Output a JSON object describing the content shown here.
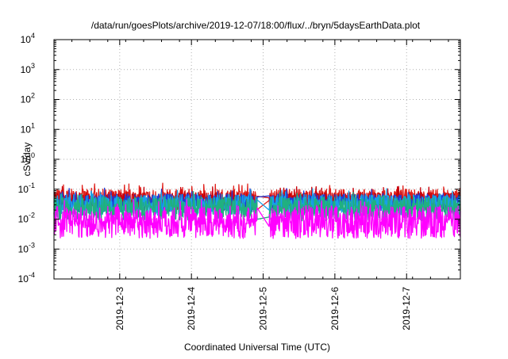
{
  "chart_data": {
    "type": "line",
    "title": "/data/run/goesPlots/archive/2019-12-07/18:00/flux/../bryn/5daysEarthData.plot",
    "xlabel": "Coordinated Universal Time (UTC)",
    "ylabel": "cSv/day",
    "yscale": "log",
    "ylim": [
      0.0001,
      10000
    ],
    "xlim": [
      "2019-12-02T02:00",
      "2019-12-07T18:00"
    ],
    "grid": true,
    "legend": "none",
    "y_ticks": [
      {
        "value": 0.0001,
        "base": "10",
        "exp": "-4"
      },
      {
        "value": 0.001,
        "base": "10",
        "exp": "-3"
      },
      {
        "value": 0.01,
        "base": "10",
        "exp": "-2"
      },
      {
        "value": 0.1,
        "base": "10",
        "exp": "-1"
      },
      {
        "value": 1,
        "base": "10",
        "exp": "0"
      },
      {
        "value": 10,
        "base": "10",
        "exp": "1"
      },
      {
        "value": 100,
        "base": "10",
        "exp": "2"
      },
      {
        "value": 1000,
        "base": "10",
        "exp": "3"
      },
      {
        "value": 10000,
        "base": "10",
        "exp": "4"
      }
    ],
    "x_ticks": [
      "2019-12-3",
      "2019-12-4",
      "2019-12-5",
      "2019-12-6",
      "2019-12-7"
    ],
    "data_gap": {
      "start": "2019-12-04T22:00",
      "end": "2019-12-05T02:00"
    },
    "series": [
      {
        "color": "#e0201b",
        "base": 0.045,
        "spread": 0.35
      },
      {
        "color": "#c8000a",
        "base": 0.04,
        "spread": 0.3
      },
      {
        "color": "#1e3cd8",
        "base": 0.035,
        "spread": 0.3
      },
      {
        "color": "#18a0e8",
        "base": 0.03,
        "spread": 0.35
      },
      {
        "color": "#20b080",
        "base": 0.022,
        "spread": 0.4
      },
      {
        "color": "#ff00ff",
        "base": 0.008,
        "spread": 0.55
      }
    ]
  }
}
